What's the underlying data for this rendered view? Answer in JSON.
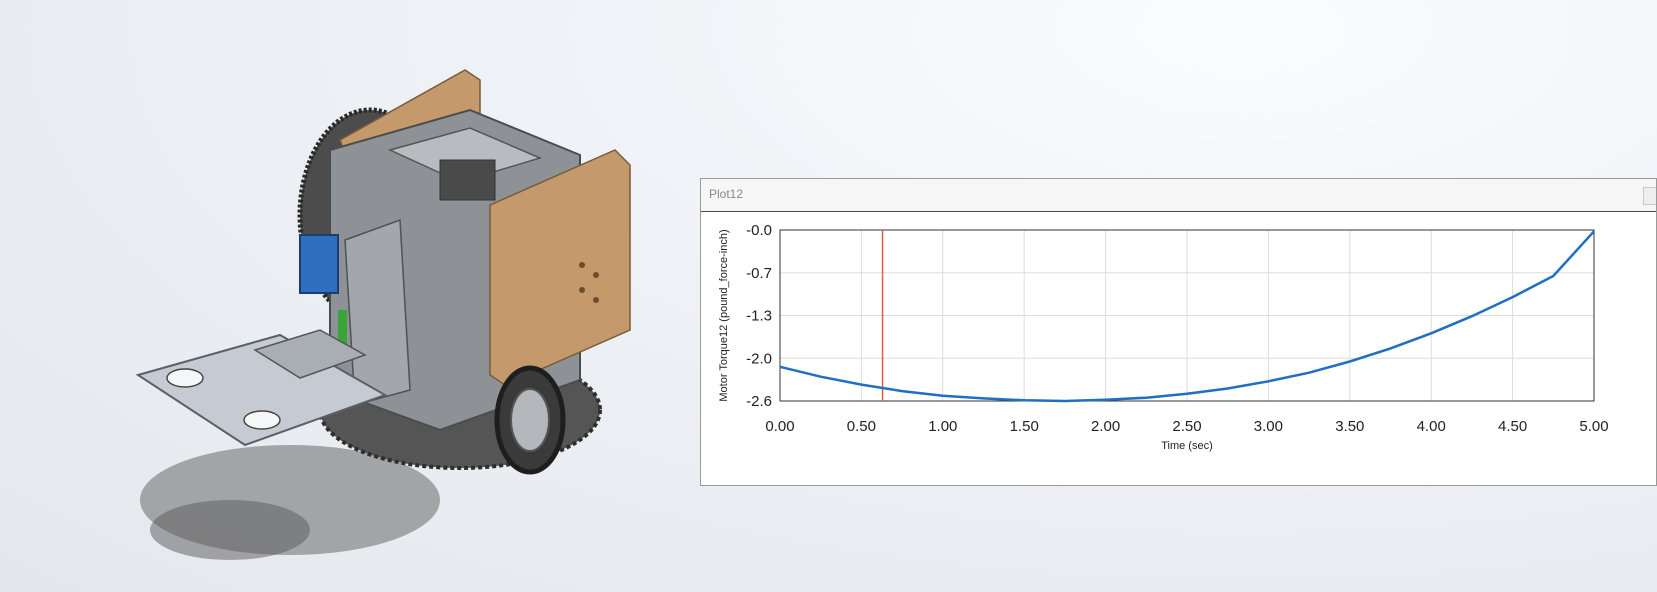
{
  "plot_window": {
    "title": "Plot12"
  },
  "chart_data": {
    "type": "line",
    "title": "",
    "xlabel": "Time (sec)",
    "ylabel": "Motor Torque12 (pound_force-inch)",
    "xlim": [
      0,
      5
    ],
    "ylim": [
      -2.6,
      0
    ],
    "x_ticks": [
      "0.00",
      "0.50",
      "1.00",
      "1.50",
      "2.00",
      "2.50",
      "3.00",
      "3.50",
      "4.00",
      "4.50",
      "5.00"
    ],
    "y_ticks": [
      "-0.0",
      "-0.7",
      "-1.3",
      "-2.0",
      "-2.6"
    ],
    "grid": true,
    "cursor_x": 0.63,
    "series": [
      {
        "x": [
          0,
          0.25,
          0.5,
          0.75,
          1,
          1.25,
          1.5,
          1.75,
          2,
          2.25,
          2.5,
          2.75,
          3,
          3.25,
          3.5,
          3.75,
          4,
          4.25,
          4.5,
          4.75,
          5
        ],
        "y": [
          -2.08,
          -2.23,
          -2.35,
          -2.45,
          -2.52,
          -2.56,
          -2.59,
          -2.6,
          -2.58,
          -2.55,
          -2.49,
          -2.41,
          -2.3,
          -2.17,
          -2.0,
          -1.8,
          -1.57,
          -1.31,
          -1.02,
          -0.7,
          -0.02
        ]
      }
    ]
  },
  "colors": {
    "series": "#1f6fc5",
    "cursor": "#e05a48",
    "grid": "#dddddd",
    "wood": "#c49a6c",
    "metal": "#8e9296",
    "servo": "#2f6fc0"
  }
}
